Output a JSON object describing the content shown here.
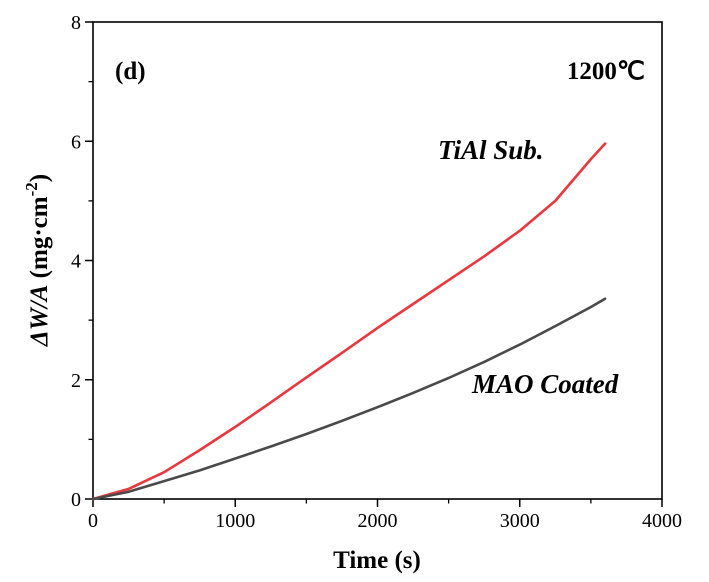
{
  "chart_data": {
    "type": "line",
    "panel_label": "(d)",
    "temperature_label": "1200℃",
    "xlabel": "Time (s)",
    "ylabel": {
      "symbol": "ΔW/A",
      "unit_open": " (mg·cm",
      "unit_exp": "-2",
      "unit_close": ")"
    },
    "xlim": [
      0,
      4000
    ],
    "ylim": [
      0,
      8
    ],
    "xticks": [
      0,
      1000,
      2000,
      3000,
      4000
    ],
    "yticks": [
      0,
      2,
      4,
      6,
      8
    ],
    "series": [
      {
        "name": "TiAl Sub.",
        "color": "#e8373d",
        "x": [
          0,
          250,
          500,
          750,
          1000,
          1250,
          1500,
          1750,
          2000,
          2250,
          2500,
          2750,
          3000,
          3250,
          3500,
          3600
        ],
        "y": [
          0,
          0.17,
          0.45,
          0.82,
          1.21,
          1.62,
          2.04,
          2.45,
          2.87,
          3.27,
          3.67,
          4.07,
          4.5,
          5.0,
          5.7,
          5.96
        ]
      },
      {
        "name": "MAO Coated",
        "color": "#4a4a4a",
        "x": [
          0,
          250,
          500,
          750,
          1000,
          1250,
          1500,
          1750,
          2000,
          2250,
          2500,
          2750,
          3000,
          3250,
          3500,
          3600
        ],
        "y": [
          0,
          0.12,
          0.3,
          0.48,
          0.68,
          0.88,
          1.09,
          1.31,
          1.54,
          1.78,
          2.03,
          2.3,
          2.59,
          2.9,
          3.22,
          3.36
        ]
      }
    ]
  }
}
